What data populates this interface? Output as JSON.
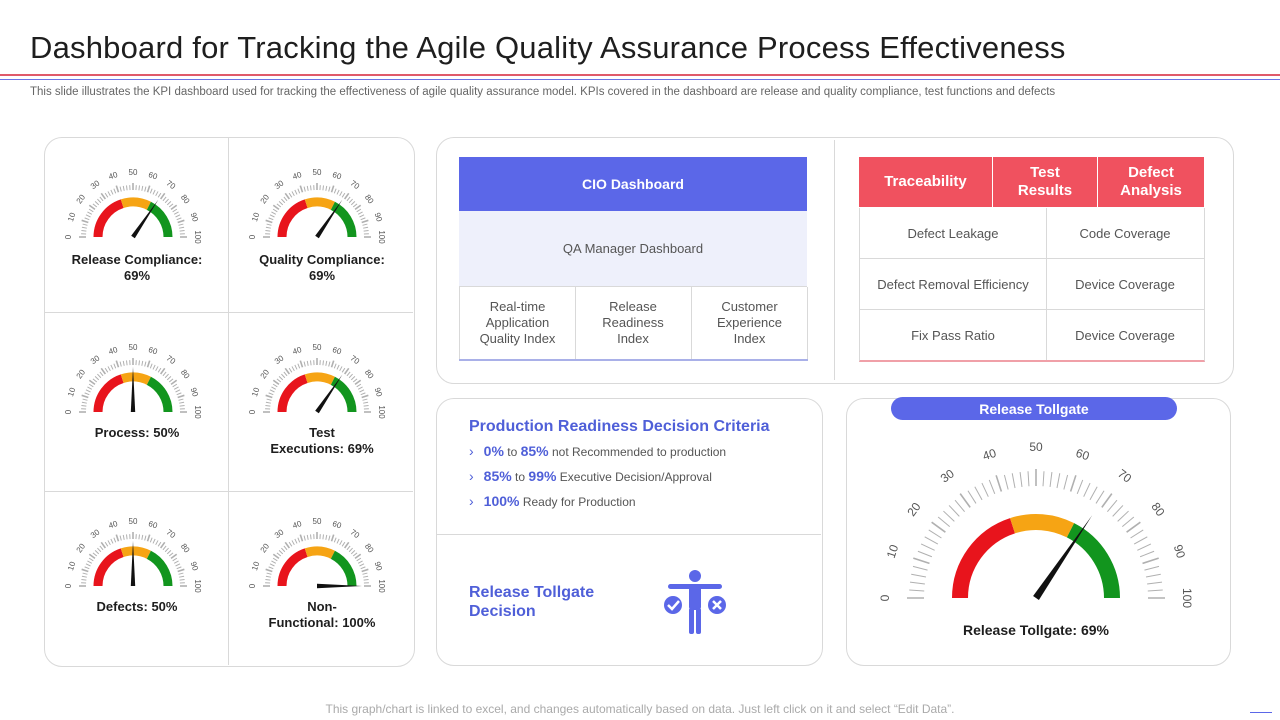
{
  "header": {
    "title": "Dashboard for Tracking the Agile Quality Assurance Process Effectiveness",
    "subtitle": "This slide illustrates the KPI dashboard used for tracking the effectiveness of agile quality assurance model. KPIs covered in the dashboard are release and quality compliance, test functions and defects"
  },
  "gauges": [
    {
      "label_line1": "Release Compliance:",
      "label_line2": "69%",
      "value": 69
    },
    {
      "label_line1": "Quality Compliance:",
      "label_line2": "69%",
      "value": 69
    },
    {
      "label_line1": "Process:  50%",
      "label_line2": "",
      "value": 50
    },
    {
      "label_line1": "Test",
      "label_line2": "Executions:  69%",
      "value": 69
    },
    {
      "label_line1": "Defects:  50%",
      "label_line2": "",
      "value": 50
    },
    {
      "label_line1": "Non-",
      "label_line2": "Functional: 100%",
      "value": 100
    }
  ],
  "gauge_ticks": [
    "0",
    "10",
    "20",
    "30",
    "40",
    "50",
    "60",
    "70",
    "80",
    "90",
    "100"
  ],
  "colors": {
    "red": "#e8141c",
    "orange": "#f6a414",
    "green": "#12951e",
    "accent": "#5b67e8",
    "accent_red": "#f0515f"
  },
  "cio": {
    "head": "CIO Dashboard",
    "qa": "QA Manager Dashboard",
    "indices": [
      {
        "l1": "Real-time",
        "l2": "Application",
        "l3": "Quality Index"
      },
      {
        "l1": "Release",
        "l2": "Readiness",
        "l3": "Index"
      },
      {
        "l1": "Customer",
        "l2": "Experience",
        "l3": "Index"
      }
    ]
  },
  "trace": {
    "headers": [
      {
        "l1": "Traceability",
        "l2": ""
      },
      {
        "l1": "Test",
        "l2": "Results"
      },
      {
        "l1": "Defect",
        "l2": "Analysis"
      }
    ],
    "rows": [
      [
        "Defect Leakage",
        "Code Coverage"
      ],
      [
        "Defect Removal Efficiency",
        "Device Coverage"
      ],
      [
        "Fix Pass Ratio",
        "Device Coverage"
      ]
    ]
  },
  "production": {
    "title": "Production Readiness Decision Criteria",
    "criteria": [
      {
        "from": "0%",
        "to_word": "to",
        "to": "85%",
        "text": "not Recommended to production"
      },
      {
        "from": "85%",
        "to_word": "to",
        "to": "99%",
        "text": "Executive Decision/Approval"
      },
      {
        "from": "100%",
        "to_word": "",
        "to": "",
        "text": "Ready for Production"
      }
    ],
    "decision_l1": "Release Tollgate",
    "decision_l2": "Decision"
  },
  "release_tollgate": {
    "pill": "Release Tollgate",
    "label": "Release Tollgate: 69%",
    "value": 69
  },
  "footer": "This graph/chart is linked to excel, and changes automatically based on data. Just left click on it and select “Edit Data”."
}
